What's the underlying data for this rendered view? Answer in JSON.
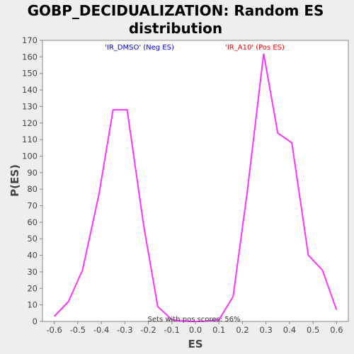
{
  "chart_data": {
    "type": "line",
    "title": "GOBP_DECIDUALIZATION: Random ES distribution",
    "title_lines": [
      "GOBP_DECIDUALIZATION: Random ES",
      "distribution"
    ],
    "xlabel": "ES",
    "ylabel": "P(ES)",
    "xlim": [
      -0.65,
      0.65
    ],
    "ylim": [
      0,
      170
    ],
    "x_ticks": [
      -0.6,
      -0.5,
      -0.4,
      -0.3,
      -0.2,
      -0.1,
      0.0,
      0.1,
      0.2,
      0.3,
      0.4,
      0.5,
      0.6
    ],
    "x_tick_labels": [
      "-0.6",
      "-0.5",
      "-0.4",
      "-0.3",
      "-0.2",
      "-0.1",
      "0.0",
      "0.1",
      "0.2",
      "0.3",
      "0.4",
      "0.5",
      "0.6"
    ],
    "y_ticks": [
      0,
      10,
      20,
      30,
      40,
      50,
      60,
      70,
      80,
      90,
      100,
      110,
      120,
      130,
      140,
      150,
      160,
      170
    ],
    "y_tick_labels": [
      "0",
      "10",
      "20",
      "30",
      "40",
      "50",
      "60",
      "70",
      "80",
      "90",
      "100",
      "110",
      "120",
      "130",
      "140",
      "150",
      "160",
      "170"
    ],
    "grid": false,
    "series": [
      {
        "x": [
          -0.6,
          -0.54,
          -0.48,
          -0.41,
          -0.35,
          -0.29,
          -0.22,
          -0.16,
          -0.1,
          -0.03,
          0.03,
          0.1,
          0.16,
          0.22,
          0.29,
          0.35,
          0.41,
          0.48,
          0.54,
          0.6
        ],
        "y": [
          3,
          12,
          31,
          77,
          128,
          128,
          58,
          9,
          1,
          0,
          0,
          1,
          15,
          78,
          162,
          114,
          108,
          40,
          31,
          7
        ]
      }
    ],
    "annotations": [
      {
        "text": "'IR_DMSO' (Neg ES)",
        "color": "#0000ff"
      },
      {
        "text": "'IR_A10' (Pos ES)",
        "color": "#ff0000"
      },
      {
        "text": "Sets with pos scores: 56%",
        "color": "#333333"
      }
    ],
    "colors": {
      "line": "#ff33ff",
      "background": "#eeeeee",
      "plot_background": "#ffffff",
      "axis": "#888888"
    }
  }
}
